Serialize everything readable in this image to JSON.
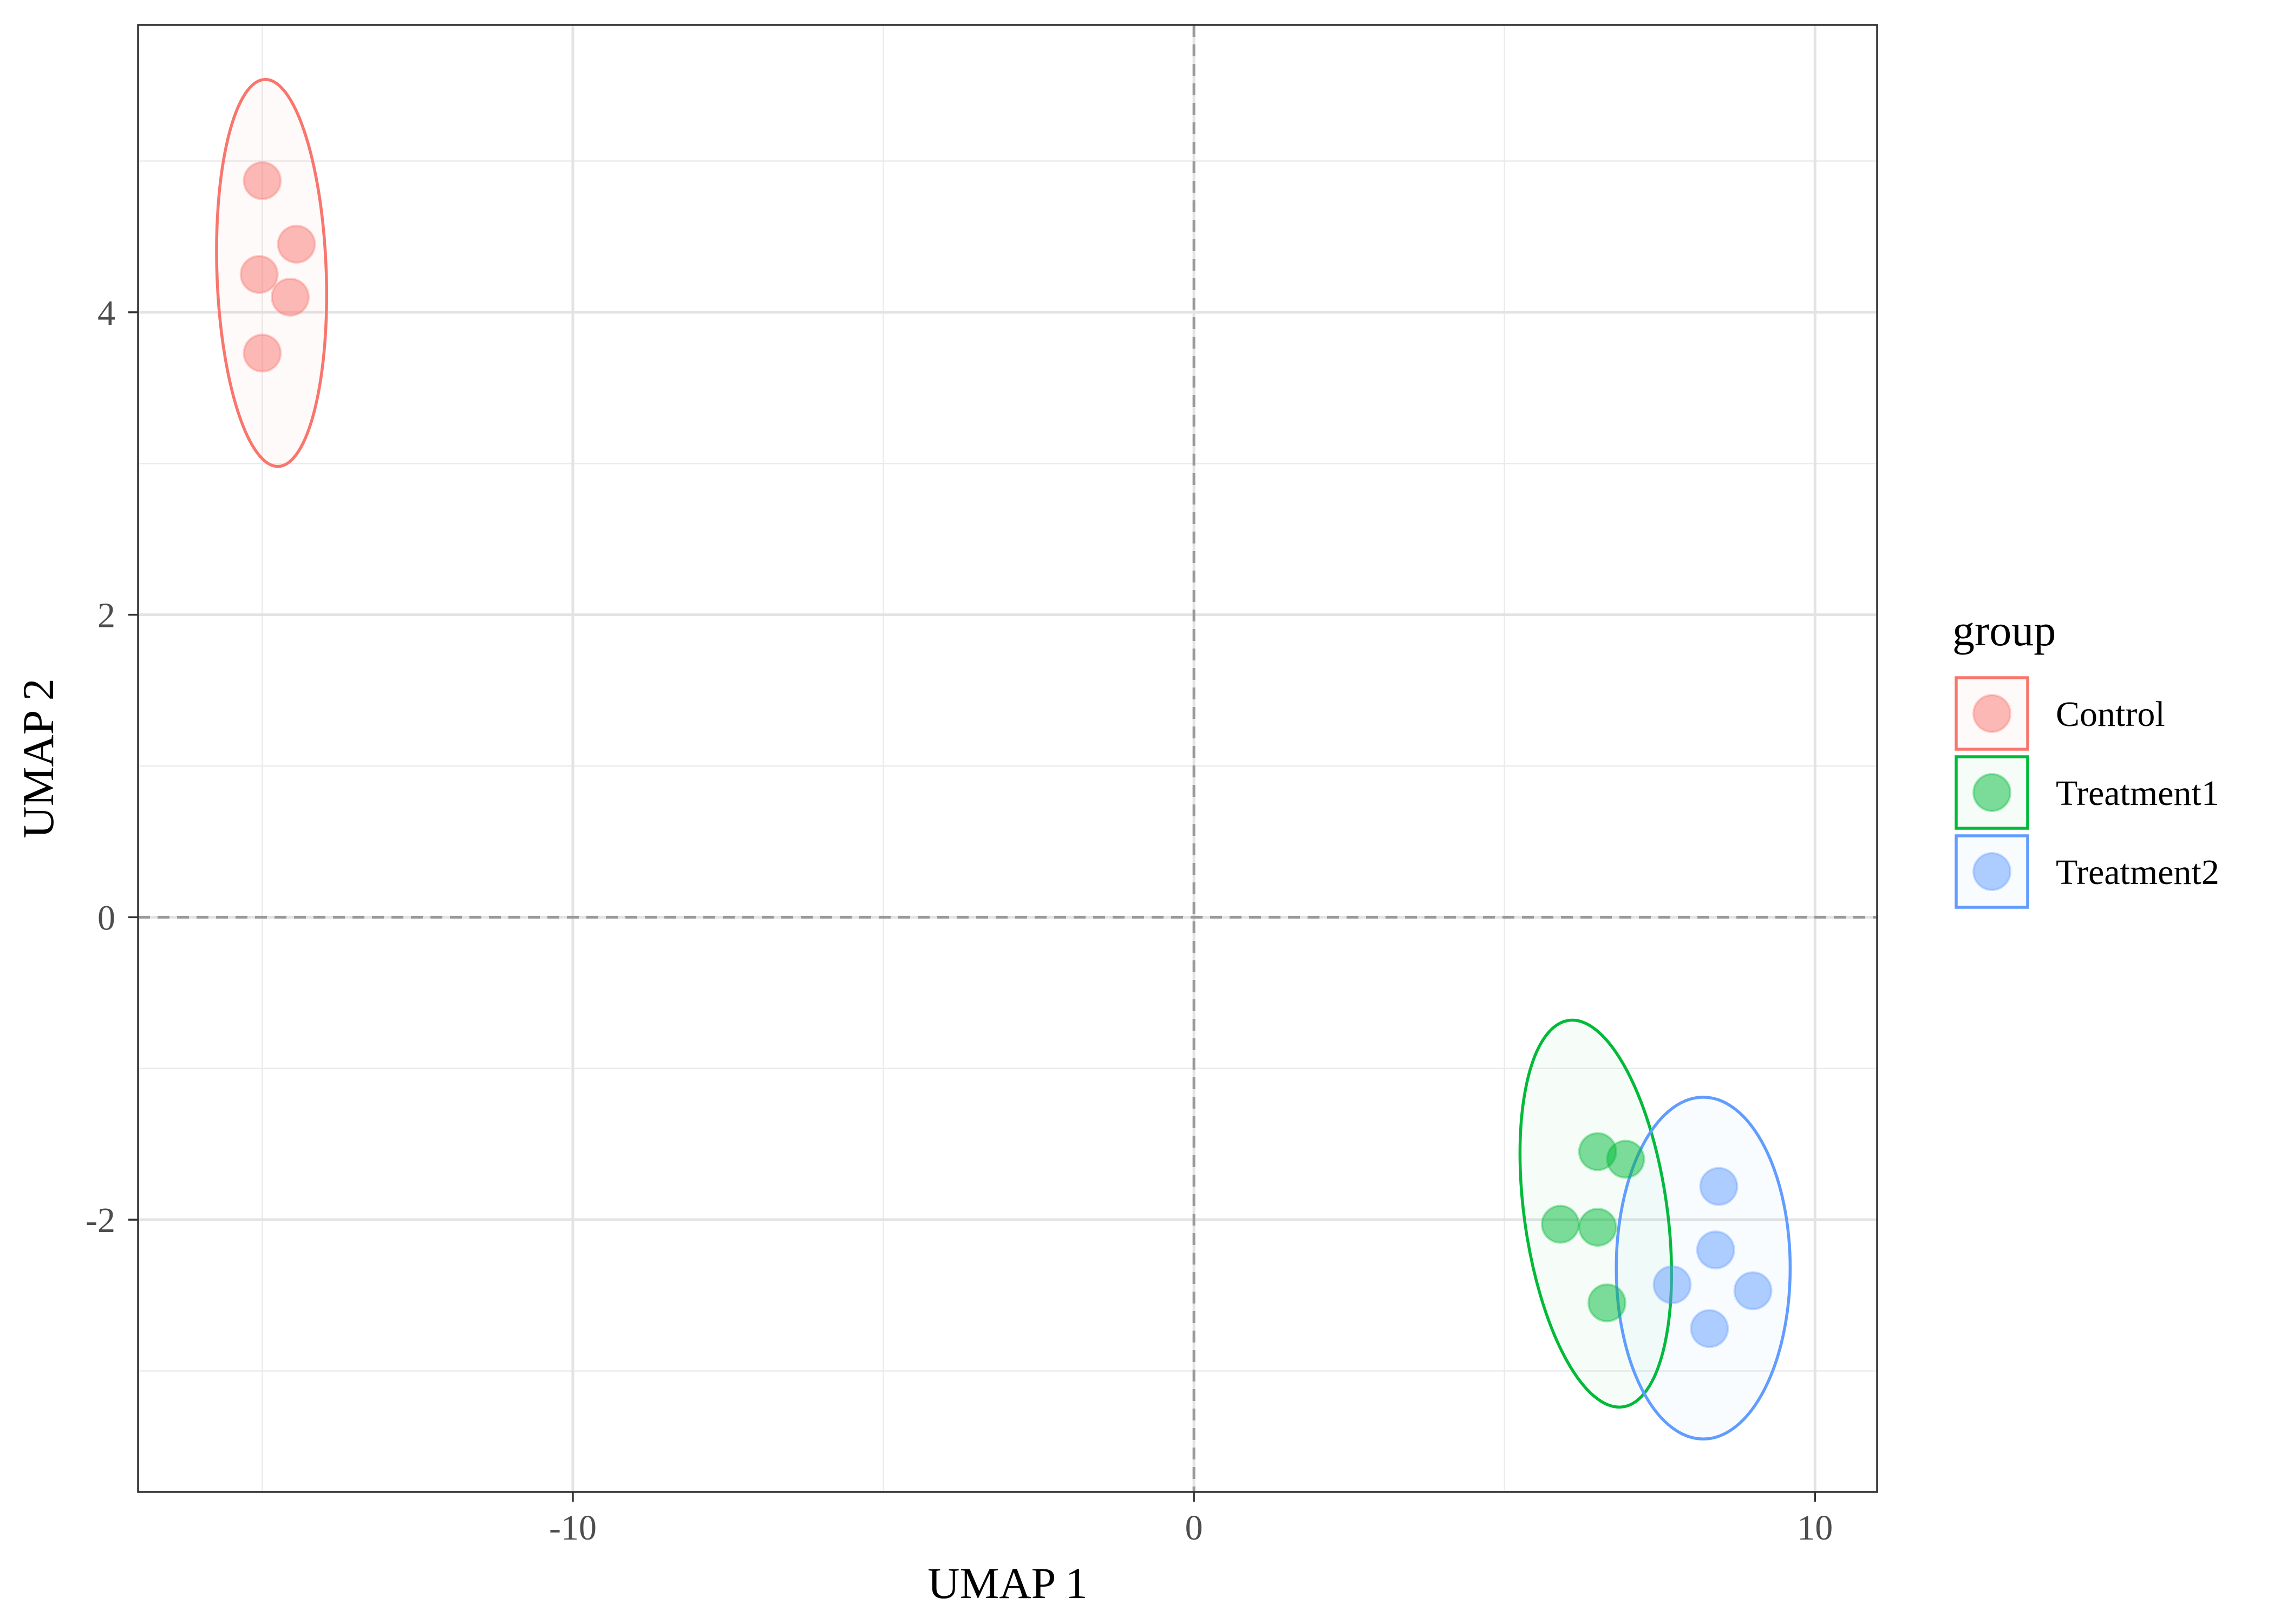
{
  "chart_data": {
    "type": "scatter",
    "title": "",
    "xlabel": "UMAP 1",
    "ylabel": "UMAP 2",
    "xlim": [
      -17.0,
      11.0
    ],
    "ylim": [
      -3.8,
      5.9
    ],
    "x_ticks": [
      -10,
      0,
      10
    ],
    "x_tick_labels": [
      "-10",
      "0",
      "10"
    ],
    "y_ticks": [
      -2,
      0,
      2,
      4
    ],
    "y_tick_labels": [
      "-2",
      "0",
      "2",
      "4"
    ],
    "grid": true,
    "reference_lines": {
      "x": 0,
      "y": 0,
      "style": "dashed"
    },
    "confidence_ellipses": true,
    "legend": {
      "title": "group",
      "position": "right"
    },
    "series": [
      {
        "name": "Control",
        "color": "#F8766D",
        "points": [
          {
            "x": -15.0,
            "y": 4.87
          },
          {
            "x": -14.45,
            "y": 4.45
          },
          {
            "x": -15.05,
            "y": 4.25
          },
          {
            "x": -14.55,
            "y": 4.1
          },
          {
            "x": -15.0,
            "y": 3.73
          }
        ],
        "ellipse": {
          "cx": -14.85,
          "cy": 4.26,
          "rx": 0.88,
          "ry": 1.28,
          "angle": -2
        }
      },
      {
        "name": "Treatment1",
        "color": "#00BA38",
        "points": [
          {
            "x": 6.5,
            "y": -1.55
          },
          {
            "x": 6.95,
            "y": -1.6
          },
          {
            "x": 5.9,
            "y": -2.03
          },
          {
            "x": 6.5,
            "y": -2.05
          },
          {
            "x": 6.65,
            "y": -2.55
          }
        ],
        "ellipse": {
          "cx": 6.47,
          "cy": -1.96,
          "rx": 1.15,
          "ry": 1.29,
          "angle": -8
        }
      },
      {
        "name": "Treatment2",
        "color": "#619CFF",
        "points": [
          {
            "x": 8.45,
            "y": -1.78
          },
          {
            "x": 8.4,
            "y": -2.2
          },
          {
            "x": 7.7,
            "y": -2.43
          },
          {
            "x": 9.0,
            "y": -2.47
          },
          {
            "x": 8.3,
            "y": -2.72
          }
        ],
        "ellipse": {
          "cx": 8.2,
          "cy": -2.32,
          "rx": 1.4,
          "ry": 1.13,
          "angle": 0
        }
      }
    ]
  }
}
